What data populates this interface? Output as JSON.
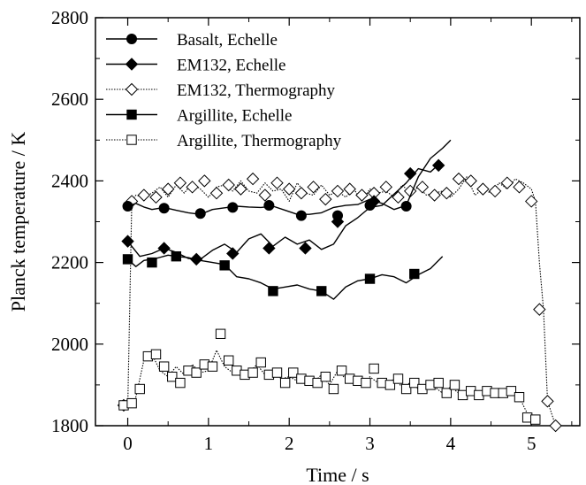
{
  "chart_data": {
    "type": "line",
    "xlabel": "Time / s",
    "ylabel": "Planck temperature / K",
    "xlim": [
      -0.4,
      5.6
    ],
    "ylim": [
      1800,
      2800
    ],
    "x_ticks": [
      0,
      1,
      2,
      3,
      4,
      5
    ],
    "y_ticks": [
      1800,
      2000,
      2200,
      2400,
      2600,
      2800
    ],
    "grid": false,
    "legend_position": "top-left",
    "series": [
      {
        "name": "Basalt, Echelle",
        "marker": "filled-circle",
        "line_style": "solid",
        "color": "#000000",
        "x": [
          0,
          0.1,
          0.2,
          0.3,
          0.45,
          0.6,
          0.75,
          0.9,
          1.05,
          1.2,
          1.35,
          1.5,
          1.65,
          1.8,
          1.95,
          2.1,
          2.25,
          2.4,
          2.55,
          2.7,
          2.85,
          3.0,
          3.15,
          3.3,
          3.45,
          3.6,
          3.75,
          3.9,
          4.0
        ],
        "y": [
          2338,
          2345,
          2336,
          2330,
          2335,
          2328,
          2322,
          2318,
          2330,
          2334,
          2338,
          2336,
          2335,
          2338,
          2328,
          2318,
          2318,
          2322,
          2335,
          2340,
          2342,
          2355,
          2345,
          2330,
          2340,
          2410,
          2455,
          2480,
          2500
        ],
        "markers_x": [
          0,
          0.45,
          0.9,
          1.3,
          1.75,
          2.15,
          2.6,
          3.0,
          3.45
        ],
        "markers_y": [
          2338,
          2333,
          2320,
          2335,
          2340,
          2315,
          2315,
          2340,
          2338
        ]
      },
      {
        "name": "EM132, Echelle",
        "marker": "filled-diamond",
        "line_style": "solid",
        "color": "#000000",
        "x": [
          0,
          0.15,
          0.3,
          0.45,
          0.6,
          0.75,
          0.9,
          1.05,
          1.2,
          1.35,
          1.5,
          1.65,
          1.8,
          1.95,
          2.1,
          2.25,
          2.4,
          2.55,
          2.7,
          2.85,
          3.0,
          3.15,
          3.3,
          3.45,
          3.6,
          3.75,
          3.85
        ],
        "y": [
          2252,
          2215,
          2222,
          2235,
          2225,
          2210,
          2208,
          2230,
          2245,
          2225,
          2258,
          2270,
          2240,
          2262,
          2245,
          2255,
          2232,
          2245,
          2290,
          2310,
          2335,
          2340,
          2368,
          2395,
          2430,
          2422,
          2440
        ],
        "markers_x": [
          0,
          0.45,
          0.85,
          1.3,
          1.75,
          2.2,
          2.6,
          3.05,
          3.5,
          3.85
        ],
        "markers_y": [
          2252,
          2235,
          2208,
          2222,
          2235,
          2235,
          2300,
          2350,
          2418,
          2438
        ]
      },
      {
        "name": "EM132, Thermography",
        "marker": "open-diamond",
        "line_style": "dotted",
        "color": "#000000",
        "x": [
          -0.05,
          0.0,
          0.05,
          0.1,
          0.2,
          0.3,
          0.4,
          0.5,
          0.6,
          0.7,
          0.8,
          0.9,
          1.0,
          1.1,
          1.2,
          1.3,
          1.4,
          1.5,
          1.6,
          1.7,
          1.8,
          1.9,
          2.0,
          2.1,
          2.2,
          2.3,
          2.4,
          2.5,
          2.6,
          2.7,
          2.8,
          2.9,
          3.0,
          3.1,
          3.2,
          3.3,
          3.4,
          3.5,
          3.6,
          3.7,
          3.8,
          3.9,
          4.0,
          4.1,
          4.2,
          4.3,
          4.4,
          4.5,
          4.6,
          4.7,
          4.8,
          4.9,
          5.0,
          5.05,
          5.1,
          5.15,
          5.2,
          5.3
        ],
        "y": [
          1850,
          1840,
          2350,
          2365,
          2360,
          2370,
          2385,
          2360,
          2390,
          2370,
          2395,
          2380,
          2360,
          2385,
          2390,
          2375,
          2400,
          2375,
          2370,
          2395,
          2375,
          2380,
          2350,
          2395,
          2370,
          2365,
          2390,
          2365,
          2375,
          2360,
          2380,
          2350,
          2380,
          2370,
          2375,
          2360,
          2390,
          2370,
          2385,
          2365,
          2370,
          2375,
          2360,
          2380,
          2410,
          2365,
          2380,
          2370,
          2395,
          2380,
          2405,
          2395,
          2380,
          2350,
          2200,
          2085,
          1860,
          1800
        ],
        "markers_x": [
          -0.05,
          0.05,
          0.2,
          0.35,
          0.5,
          0.65,
          0.8,
          0.95,
          1.1,
          1.25,
          1.4,
          1.55,
          1.7,
          1.85,
          2.0,
          2.15,
          2.3,
          2.45,
          2.6,
          2.75,
          2.9,
          3.05,
          3.2,
          3.35,
          3.5,
          3.65,
          3.8,
          3.95,
          4.1,
          4.25,
          4.4,
          4.55,
          4.7,
          4.85,
          5.0,
          5.1,
          5.2,
          5.3
        ],
        "markers_y": [
          1850,
          2350,
          2365,
          2360,
          2380,
          2395,
          2385,
          2400,
          2370,
          2390,
          2380,
          2405,
          2365,
          2395,
          2380,
          2370,
          2385,
          2355,
          2375,
          2380,
          2365,
          2370,
          2385,
          2360,
          2375,
          2385,
          2365,
          2370,
          2405,
          2400,
          2380,
          2375,
          2395,
          2385,
          2350,
          2085,
          1860,
          1800
        ]
      },
      {
        "name": "Argillite, Echelle",
        "marker": "filled-square",
        "line_style": "solid",
        "color": "#000000",
        "x": [
          0,
          0.1,
          0.2,
          0.35,
          0.5,
          0.6,
          0.75,
          0.9,
          1.05,
          1.2,
          1.35,
          1.5,
          1.65,
          1.8,
          1.95,
          2.1,
          2.25,
          2.4,
          2.55,
          2.7,
          2.85,
          3.0,
          3.15,
          3.3,
          3.45,
          3.6,
          3.75,
          3.9
        ],
        "y": [
          2208,
          2190,
          2205,
          2210,
          2218,
          2215,
          2212,
          2205,
          2200,
          2195,
          2165,
          2160,
          2150,
          2135,
          2140,
          2145,
          2135,
          2130,
          2110,
          2140,
          2155,
          2160,
          2170,
          2165,
          2150,
          2170,
          2185,
          2215
        ],
        "markers_x": [
          0,
          0.3,
          0.6,
          1.2,
          1.8,
          2.4,
          3.0,
          3.55
        ],
        "markers_y": [
          2208,
          2200,
          2215,
          2193,
          2130,
          2130,
          2160,
          2172
        ]
      },
      {
        "name": "Argillite, Thermography",
        "marker": "open-square",
        "line_style": "dotted",
        "color": "#000000",
        "x": [
          -0.05,
          0.05,
          0.1,
          0.2,
          0.3,
          0.4,
          0.5,
          0.6,
          0.7,
          0.8,
          0.9,
          1.0,
          1.1,
          1.2,
          1.3,
          1.4,
          1.5,
          1.6,
          1.7,
          1.8,
          1.9,
          2.0,
          2.1,
          2.2,
          2.3,
          2.4,
          2.5,
          2.6,
          2.7,
          2.8,
          2.9,
          3.0,
          3.1,
          3.2,
          3.3,
          3.4,
          3.5,
          3.6,
          3.7,
          3.8,
          3.9,
          4.0,
          4.1,
          4.2,
          4.3,
          4.4,
          4.5,
          4.6,
          4.7,
          4.8,
          4.85,
          4.95,
          5.0,
          5.05
        ],
        "y": [
          1845,
          1855,
          1870,
          1960,
          1975,
          1935,
          1920,
          1945,
          1925,
          1950,
          1930,
          1935,
          1985,
          1945,
          1930,
          1925,
          1930,
          1950,
          1925,
          1935,
          1915,
          1920,
          1910,
          1915,
          1905,
          1925,
          1900,
          1935,
          1915,
          1910,
          1900,
          1920,
          1905,
          1900,
          1915,
          1895,
          1905,
          1890,
          1900,
          1895,
          1880,
          1895,
          1880,
          1885,
          1875,
          1885,
          1880,
          1875,
          1885,
          1875,
          1870,
          1830,
          1810,
          1810
        ],
        "markers_x": [
          -0.05,
          0.05,
          0.15,
          0.25,
          0.35,
          0.45,
          0.55,
          0.65,
          0.75,
          0.85,
          0.95,
          1.05,
          1.15,
          1.25,
          1.35,
          1.45,
          1.55,
          1.65,
          1.75,
          1.85,
          1.95,
          2.05,
          2.15,
          2.25,
          2.35,
          2.45,
          2.55,
          2.65,
          2.75,
          2.85,
          2.95,
          3.05,
          3.15,
          3.25,
          3.35,
          3.45,
          3.55,
          3.65,
          3.75,
          3.85,
          3.95,
          4.05,
          4.15,
          4.25,
          4.35,
          4.45,
          4.55,
          4.65,
          4.75,
          4.85,
          4.95,
          5.05
        ],
        "markers_y": [
          1850,
          1855,
          1890,
          1970,
          1975,
          1945,
          1920,
          1905,
          1935,
          1930,
          1950,
          1945,
          2025,
          1960,
          1935,
          1925,
          1930,
          1955,
          1925,
          1930,
          1905,
          1930,
          1915,
          1910,
          1905,
          1920,
          1890,
          1935,
          1915,
          1910,
          1905,
          1940,
          1905,
          1900,
          1915,
          1890,
          1905,
          1890,
          1900,
          1905,
          1880,
          1900,
          1875,
          1885,
          1875,
          1885,
          1880,
          1880,
          1885,
          1870,
          1820,
          1815
        ]
      }
    ]
  }
}
